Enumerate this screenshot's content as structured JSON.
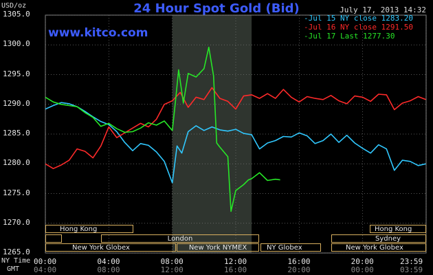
{
  "header": {
    "title": "24 Hour Spot Gold (Bid)",
    "units": "USD/oz",
    "datetime": "July 17, 2013 14:32",
    "watermark": "www.kitco.com"
  },
  "legend": [
    {
      "label": "-Jul 15 NY close 1283.20",
      "color": "#30c8ff"
    },
    {
      "label": "-Jul 16 NY close 1291.50",
      "color": "#ff2a2a"
    },
    {
      "label": "-Jul 17 Last 1277.30",
      "color": "#27e627"
    }
  ],
  "sessions": {
    "hong_kong_left": "Hong Kong",
    "london": "London",
    "ny_globex_1": "New York Globex",
    "ny_nymex": "New York NYMEX",
    "ny_globex_2": "NY Globex",
    "hong_kong_right": "Hong Kong",
    "sydney": "Sydney",
    "ny_globex_3": "New York Globex"
  },
  "axis_rows": {
    "ny_time_label": "NY Time",
    "gmt_label": "GMT",
    "ny_ticks": [
      "00:00",
      "04:00",
      "08:00",
      "12:00",
      "16:00",
      "20:00",
      "23:59"
    ],
    "gmt_ticks": [
      "04:00",
      "08:00",
      "12:00",
      "16:00",
      "20:00",
      "00:00",
      "03:59"
    ]
  },
  "chart_data": {
    "type": "line",
    "title": "24 Hour Spot Gold (Bid)",
    "ylabel": "USD/oz",
    "xlabel": "NY Time",
    "ylim": [
      1265,
      1305
    ],
    "xlim": [
      0,
      24
    ],
    "yticks": [
      "1305.0",
      "1300.0",
      "1295.0",
      "1290.0",
      "1285.0",
      "1280.0",
      "1275.0",
      "1270.0",
      "1265.0"
    ],
    "grid": true,
    "legend_position": "top-right",
    "shaded_range": [
      8,
      13
    ],
    "series": [
      {
        "name": "Jul 15 NY close 1283.20",
        "color": "#30c8ff",
        "points": [
          [
            0,
            1289.2
          ],
          [
            0.5,
            1289.8
          ],
          [
            1,
            1290.3
          ],
          [
            1.5,
            1290.1
          ],
          [
            2,
            1289.6
          ],
          [
            2.5,
            1288.8
          ],
          [
            3,
            1287.9
          ],
          [
            3.5,
            1287.1
          ],
          [
            4,
            1286.6
          ],
          [
            4.5,
            1285.4
          ],
          [
            5,
            1283.6
          ],
          [
            5.5,
            1282.2
          ],
          [
            6,
            1283.4
          ],
          [
            6.5,
            1283.1
          ],
          [
            7,
            1282.0
          ],
          [
            7.5,
            1280.4
          ],
          [
            8,
            1276.8
          ],
          [
            8.3,
            1283.0
          ],
          [
            8.6,
            1281.8
          ],
          [
            9,
            1285.4
          ],
          [
            9.5,
            1286.4
          ],
          [
            10,
            1285.6
          ],
          [
            10.5,
            1286.2
          ],
          [
            11,
            1285.7
          ],
          [
            11.5,
            1285.5
          ],
          [
            12,
            1285.8
          ],
          [
            12.5,
            1285.1
          ],
          [
            13,
            1284.9
          ],
          [
            13.5,
            1282.5
          ],
          [
            14,
            1283.5
          ],
          [
            14.5,
            1283.9
          ],
          [
            15,
            1284.6
          ],
          [
            15.5,
            1284.5
          ],
          [
            16,
            1285.2
          ],
          [
            16.5,
            1284.7
          ],
          [
            17,
            1283.4
          ],
          [
            17.5,
            1283.9
          ],
          [
            18,
            1285.0
          ],
          [
            18.5,
            1283.6
          ],
          [
            19,
            1284.8
          ],
          [
            19.5,
            1283.5
          ],
          [
            20,
            1282.6
          ],
          [
            20.5,
            1281.8
          ],
          [
            21,
            1283.2
          ],
          [
            21.5,
            1282.5
          ],
          [
            22,
            1278.9
          ],
          [
            22.5,
            1280.6
          ],
          [
            23,
            1280.4
          ],
          [
            23.5,
            1279.7
          ],
          [
            23.98,
            1280.0
          ]
        ]
      },
      {
        "name": "Jul 16 NY close 1291.50",
        "color": "#ff2a2a",
        "points": [
          [
            0,
            1280.0
          ],
          [
            0.5,
            1279.2
          ],
          [
            1,
            1279.8
          ],
          [
            1.5,
            1280.6
          ],
          [
            2,
            1282.5
          ],
          [
            2.5,
            1282.1
          ],
          [
            3,
            1281.0
          ],
          [
            3.5,
            1283.0
          ],
          [
            4,
            1286.2
          ],
          [
            4.5,
            1284.4
          ],
          [
            5,
            1285.2
          ],
          [
            5.5,
            1286.0
          ],
          [
            6,
            1286.8
          ],
          [
            6.5,
            1286.2
          ],
          [
            7,
            1287.5
          ],
          [
            7.5,
            1290.0
          ],
          [
            8,
            1290.6
          ],
          [
            8.5,
            1292.0
          ],
          [
            9,
            1289.5
          ],
          [
            9.5,
            1291.2
          ],
          [
            10,
            1290.8
          ],
          [
            10.5,
            1292.8
          ],
          [
            11,
            1291.0
          ],
          [
            11.5,
            1290.5
          ],
          [
            12,
            1289.2
          ],
          [
            12.5,
            1291.4
          ],
          [
            13,
            1291.6
          ],
          [
            13.5,
            1291.0
          ],
          [
            14,
            1291.8
          ],
          [
            14.5,
            1291.0
          ],
          [
            15,
            1292.5
          ],
          [
            15.5,
            1291.2
          ],
          [
            16,
            1290.4
          ],
          [
            16.5,
            1291.3
          ],
          [
            17,
            1291.0
          ],
          [
            17.5,
            1290.8
          ],
          [
            18,
            1291.5
          ],
          [
            18.5,
            1290.6
          ],
          [
            19,
            1290.1
          ],
          [
            19.5,
            1291.4
          ],
          [
            20,
            1291.2
          ],
          [
            20.5,
            1290.5
          ],
          [
            21,
            1291.7
          ],
          [
            21.5,
            1291.6
          ],
          [
            22,
            1289.1
          ],
          [
            22.5,
            1290.2
          ],
          [
            23,
            1290.6
          ],
          [
            23.5,
            1291.3
          ],
          [
            23.98,
            1290.8
          ]
        ]
      },
      {
        "name": "Jul 17 Last 1277.30",
        "color": "#27e627",
        "points": [
          [
            0,
            1291.2
          ],
          [
            0.5,
            1290.4
          ],
          [
            1,
            1290.0
          ],
          [
            1.5,
            1289.8
          ],
          [
            2,
            1289.6
          ],
          [
            2.5,
            1288.6
          ],
          [
            3,
            1287.8
          ],
          [
            3.5,
            1286.3
          ],
          [
            4,
            1286.8
          ],
          [
            4.5,
            1285.9
          ],
          [
            5,
            1285.3
          ],
          [
            5.5,
            1285.4
          ],
          [
            6,
            1286.0
          ],
          [
            6.5,
            1286.9
          ],
          [
            7,
            1286.5
          ],
          [
            7.5,
            1287.2
          ],
          [
            8,
            1285.6
          ],
          [
            8.2,
            1290.5
          ],
          [
            8.4,
            1295.8
          ],
          [
            8.7,
            1290.2
          ],
          [
            9,
            1295.2
          ],
          [
            9.5,
            1294.6
          ],
          [
            10,
            1296.0
          ],
          [
            10.3,
            1299.6
          ],
          [
            10.6,
            1294.8
          ],
          [
            10.8,
            1283.5
          ],
          [
            11,
            1282.8
          ],
          [
            11.5,
            1281.2
          ],
          [
            11.7,
            1272.0
          ],
          [
            12,
            1275.5
          ],
          [
            12.5,
            1276.5
          ],
          [
            12.8,
            1277.3
          ],
          [
            13,
            1277.5
          ],
          [
            13.5,
            1278.5
          ],
          [
            14,
            1277.2
          ],
          [
            14.5,
            1277.4
          ],
          [
            14.8,
            1277.3
          ]
        ]
      }
    ]
  }
}
